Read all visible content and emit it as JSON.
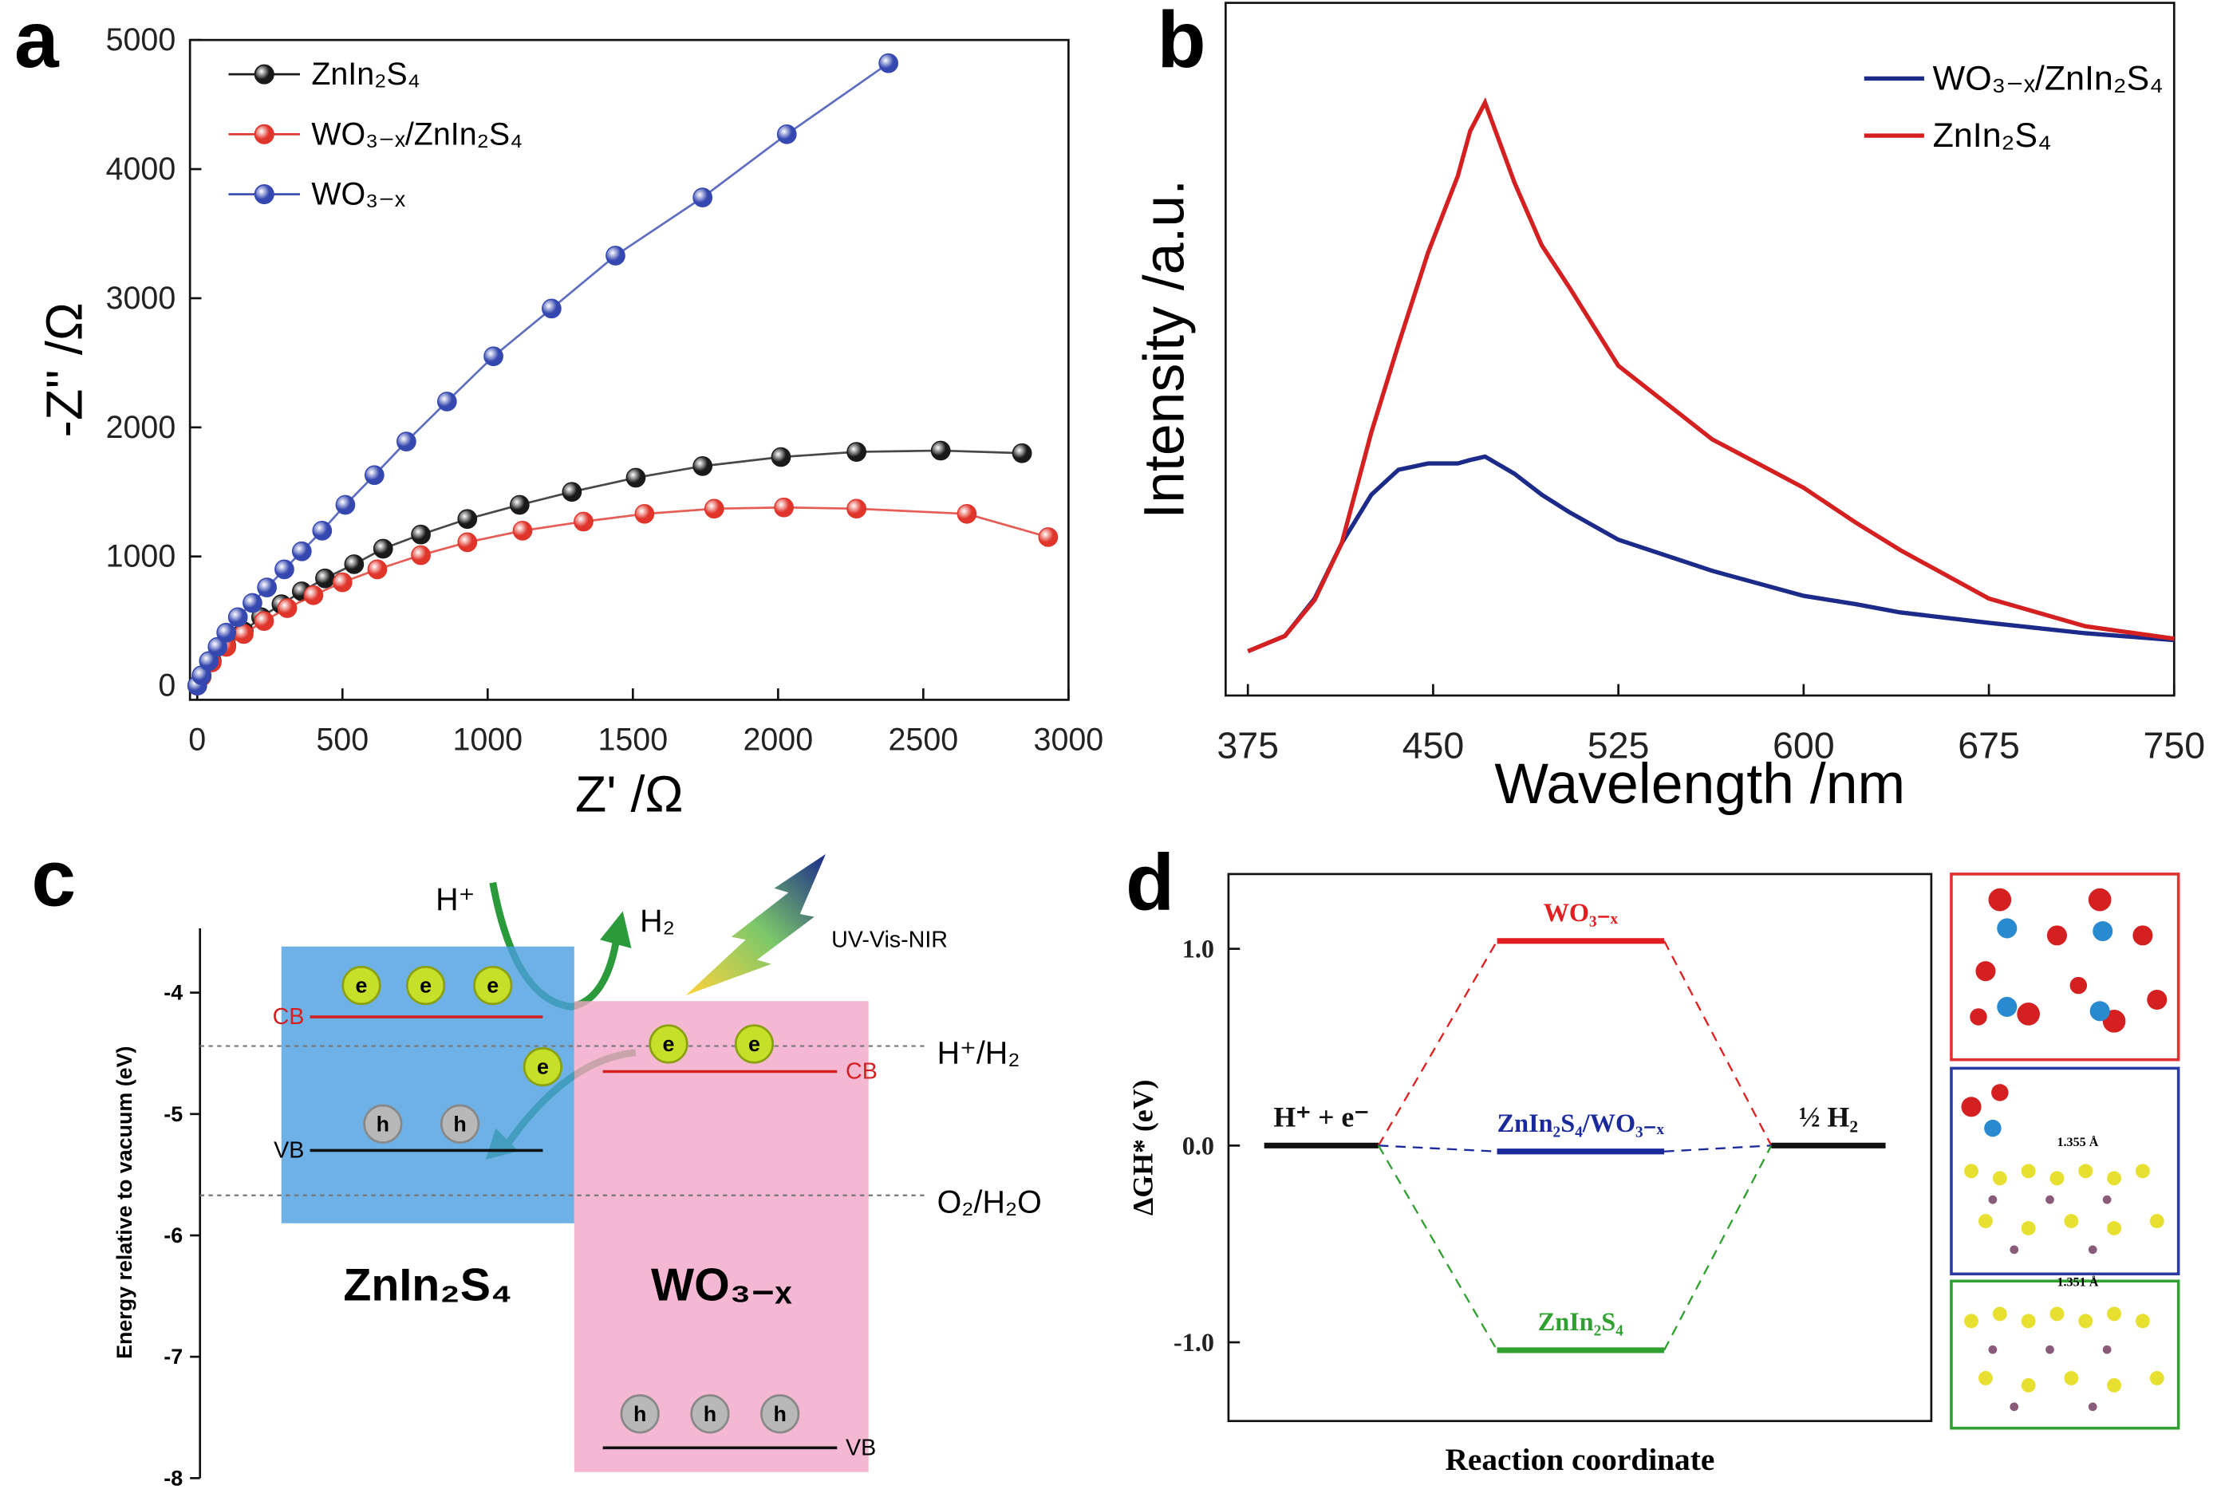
{
  "chart_data": [
    {
      "type": "scatter-line",
      "panel_label": "a",
      "xlabel": "Z' /Ω",
      "ylabel": "-Z'' /Ω",
      "xlim": [
        -25,
        3000
      ],
      "ylim": [
        -110,
        5000
      ],
      "xticks": [
        0,
        500,
        1000,
        1500,
        2000,
        2500,
        3000
      ],
      "yticks": [
        0,
        1000,
        2000,
        3000,
        4000,
        5000
      ],
      "legend": "upper left",
      "series": [
        {
          "name": "ZnIn₂S₄",
          "color": "#1a1a1a",
          "x": [
            0,
            15,
            50,
            100,
            160,
            220,
            290,
            360,
            440,
            540,
            640,
            770,
            930,
            1110,
            1290,
            1510,
            1740,
            2010,
            2270,
            2560,
            2840
          ],
          "values": [
            0,
            70,
            190,
            310,
            420,
            530,
            630,
            730,
            830,
            940,
            1060,
            1170,
            1290,
            1400,
            1500,
            1610,
            1700,
            1770,
            1810,
            1820,
            1800
          ]
        },
        {
          "name": "WO₃₋ₓ/ZnIn₂S₄",
          "color": "#e0352b",
          "x": [
            0,
            15,
            50,
            100,
            160,
            230,
            310,
            400,
            500,
            620,
            770,
            930,
            1120,
            1330,
            1540,
            1780,
            2020,
            2270,
            2650,
            2930
          ],
          "values": [
            0,
            70,
            180,
            300,
            400,
            500,
            600,
            700,
            800,
            900,
            1010,
            1110,
            1200,
            1270,
            1330,
            1370,
            1380,
            1370,
            1330,
            1150
          ]
        },
        {
          "name": "WO₃₋ₓ",
          "color": "#3548b0",
          "x": [
            0,
            15,
            40,
            70,
            100,
            140,
            190,
            240,
            300,
            360,
            430,
            510,
            610,
            720,
            860,
            1020,
            1220,
            1440,
            1740,
            2030,
            2380
          ],
          "values": [
            0,
            80,
            190,
            300,
            410,
            530,
            640,
            760,
            900,
            1040,
            1200,
            1400,
            1630,
            1890,
            2200,
            2550,
            2920,
            3330,
            3780,
            4270,
            4820
          ]
        }
      ]
    },
    {
      "type": "line",
      "panel_label": "b",
      "xlabel": "Wavelength /nm",
      "ylabel": "Intensity /a.u.",
      "xlim": [
        366,
        750
      ],
      "ylim": [
        0,
        100
      ],
      "xticks": [
        375,
        450,
        525,
        600,
        675,
        750
      ],
      "legend": "upper right",
      "x": [
        375,
        390,
        402,
        413,
        425,
        436,
        448,
        460,
        465,
        471,
        483,
        494,
        505,
        525,
        563,
        600,
        621,
        639,
        675,
        714,
        750
      ],
      "series": [
        {
          "name": "WO₃₋ₓ/ZnIn₂S₄",
          "color": "#1c2a8a",
          "values": [
            6.4,
            8.6,
            14,
            22,
            29,
            32.6,
            33.5,
            33.5,
            34,
            34.5,
            32,
            29,
            26.5,
            22.5,
            18,
            14.4,
            13.2,
            12,
            10.5,
            9,
            8
          ]
        },
        {
          "name": "ZnIn₂S₄",
          "color": "#d42020",
          "values": [
            6.4,
            8.6,
            13.8,
            22,
            38,
            50.7,
            64,
            75,
            81.5,
            85.6,
            74,
            65,
            59,
            47.6,
            37,
            30,
            25,
            21,
            14,
            10,
            8.2
          ]
        }
      ]
    },
    {
      "type": "band-diagram",
      "panel_label": "c",
      "ylabel": "Energy relative to vacuum (eV)",
      "ylim": [
        -8,
        -3.47
      ],
      "yticks": [
        -4,
        -5,
        -6,
        -7,
        -8
      ],
      "cb_label": "CB",
      "vb_label": "VB",
      "electron_label": "e",
      "hole_label": "h",
      "proton_label": "H⁺",
      "product_label": "H₂",
      "light_label": "UV-Vis-NIR",
      "references": [
        {
          "name": "H⁺/H₂",
          "value": -4.44
        },
        {
          "name": "O₂/H₂O",
          "value": -5.67
        }
      ],
      "materials": [
        {
          "name": "ZnIn₂S₄",
          "top": -3.62,
          "bottom": -5.9,
          "cb": -4.2,
          "vb": -5.3,
          "color": "#4a9de0"
        },
        {
          "name": "WO₃₋ₓ",
          "top": -4.07,
          "bottom": -7.95,
          "cb": -4.65,
          "vb": -7.75,
          "color": "#f3a6c8"
        }
      ]
    },
    {
      "type": "energy-levels",
      "panel_label": "d",
      "xlabel": "Reaction coordinate",
      "ylabel": "ΔGH* (eV)",
      "ylim": [
        -1.4,
        1.38
      ],
      "yticks": [
        {
          "value": 1,
          "label": "1.0"
        },
        {
          "value": 0,
          "label": "0.0"
        },
        {
          "value": -1,
          "label": "-1.0"
        }
      ],
      "levels": [
        {
          "name": "H⁺ + e⁻",
          "value": 0,
          "color": "#111111"
        },
        {
          "name": "WO₃₋ₓ",
          "value": 1.04,
          "color": "#e02020"
        },
        {
          "name": "ZnIn₂S₄/WO₃₋ₓ",
          "value": -0.03,
          "color": "#1a2a9a"
        },
        {
          "name": "ZnIn₂S₄",
          "value": -1.04,
          "color": "#30a030"
        },
        {
          "name": "½ H₂",
          "value": 0,
          "color": "#111111"
        }
      ],
      "annotations": [
        "1.355 Å",
        "1.351 Å"
      ]
    }
  ]
}
